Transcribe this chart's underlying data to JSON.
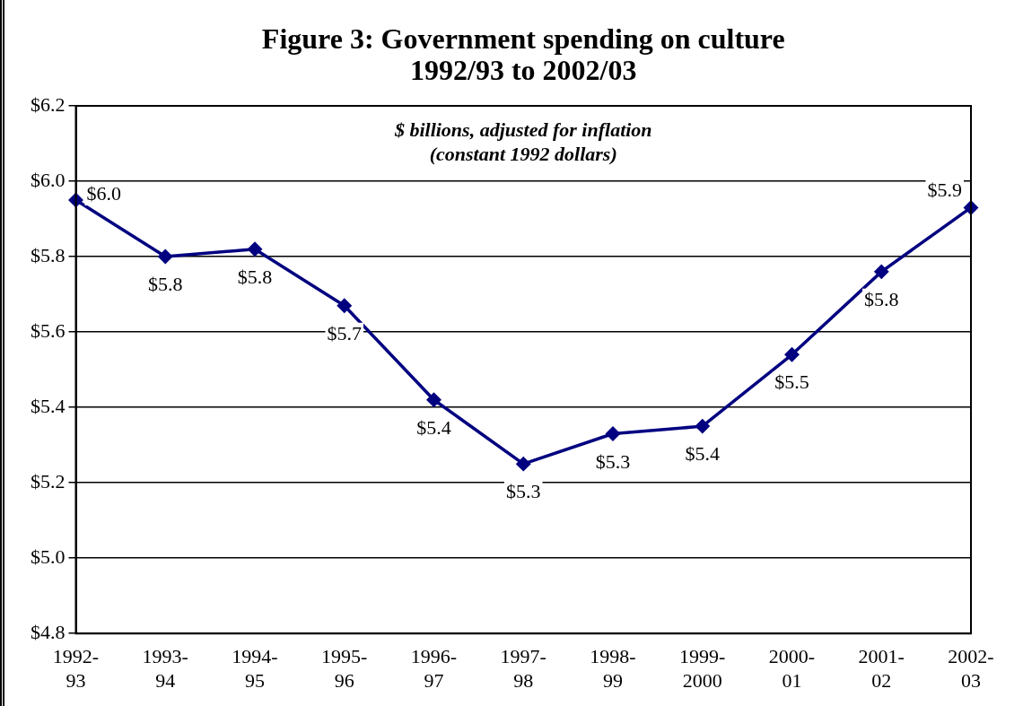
{
  "chart_data": {
    "type": "line",
    "title": "Figure 3: Government spending on culture\n1992/93 to 2002/03",
    "subtitle": "$ billions, adjusted for inflation\n(constant 1992 dollars)",
    "categories": [
      "1992-93",
      "1993-94",
      "1994-95",
      "1995-96",
      "1996-97",
      "1997-98",
      "1998-99",
      "1999-2000",
      "2000-01",
      "2001-02",
      "2002-03"
    ],
    "series": [
      {
        "color": "#000080",
        "values": [
          5.95,
          5.8,
          5.82,
          5.67,
          5.42,
          5.25,
          5.33,
          5.35,
          5.54,
          5.76,
          5.93
        ],
        "value_labels": [
          "$6.0",
          "$5.8",
          "$5.8",
          "$5.7",
          "$5.4",
          "$5.3",
          "$5.3",
          "$5.4",
          "$5.5",
          "$5.8",
          "$5.9"
        ]
      }
    ],
    "ylim": [
      4.8,
      6.2
    ],
    "yticks": [
      {
        "value": 4.8,
        "label": "$4.8"
      },
      {
        "value": 5.0,
        "label": "$5.0"
      },
      {
        "value": 5.2,
        "label": "$5.2"
      },
      {
        "value": 5.4,
        "label": "$5.4"
      },
      {
        "value": 5.6,
        "label": "$5.6"
      },
      {
        "value": 5.8,
        "label": "$5.8"
      },
      {
        "value": 6.0,
        "label": "$6.0"
      },
      {
        "value": 6.2,
        "label": "$6.2"
      }
    ],
    "grid": "y",
    "legend": false,
    "marker": "diamond",
    "line_style": "solid"
  }
}
